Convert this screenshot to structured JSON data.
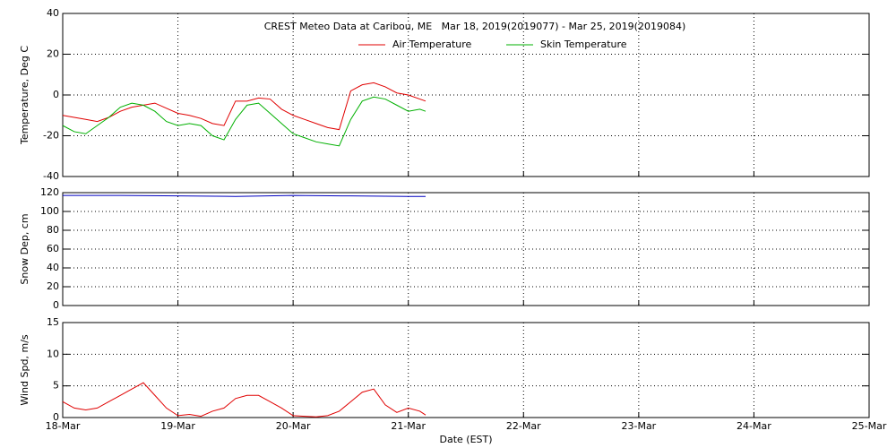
{
  "chart_data": [
    {
      "type": "line",
      "title": "CREST Meteo Data at Caribou, ME   Mar 18, 2019(2019077) - Mar 25, 2019(2019084)",
      "ylabel": "Temperature, Deg C",
      "x": [
        0,
        0.1,
        0.2,
        0.3,
        0.4,
        0.5,
        0.6,
        0.7,
        0.8,
        0.9,
        1.0,
        1.1,
        1.2,
        1.3,
        1.4,
        1.5,
        1.6,
        1.7,
        1.8,
        1.9,
        2.0,
        2.1,
        2.2,
        2.3,
        2.4,
        2.5,
        2.6,
        2.7,
        2.8,
        2.9,
        3.0,
        3.1,
        3.15
      ],
      "series": [
        {
          "name": "Air Temperature",
          "color": "#e00000",
          "values": [
            -10,
            -11,
            -12,
            -13,
            -11,
            -8,
            -6,
            -5,
            -4,
            -6.5,
            -9,
            -10,
            -11.5,
            -14,
            -15,
            -3,
            -3,
            -1.5,
            -2,
            -7,
            -10,
            -12,
            -14,
            -16,
            -17,
            2,
            5,
            6,
            4,
            1,
            0,
            -2,
            -3
          ]
        },
        {
          "name": "Skin Temperature",
          "color": "#00b000",
          "values": [
            -15,
            -18,
            -19,
            -15,
            -11,
            -6,
            -4,
            -5,
            -8,
            -13,
            -15,
            -14,
            -15,
            -20,
            -22,
            -12,
            -5,
            -4,
            -9,
            -14,
            -19,
            -21,
            -23,
            -24,
            -25,
            -12,
            -3,
            -1,
            -2,
            -5,
            -8,
            -7,
            -8
          ]
        }
      ],
      "xlim": [
        0,
        7
      ],
      "xticks": [
        0,
        1,
        2,
        3,
        4,
        5,
        6,
        7
      ],
      "ylim": [
        -40,
        40
      ],
      "yticks": [
        -40,
        -20,
        0,
        20,
        40
      ],
      "grid": true
    },
    {
      "type": "line",
      "ylabel": "Snow Dep, cm",
      "x": [
        0,
        0.5,
        1.0,
        1.5,
        2.0,
        2.5,
        3.0,
        3.15
      ],
      "series": [
        {
          "color": "#0000c0",
          "values": [
            117,
            117,
            116.5,
            116,
            117,
            116.5,
            116,
            116
          ]
        }
      ],
      "xlim": [
        0,
        7
      ],
      "xticks": [
        0,
        1,
        2,
        3,
        4,
        5,
        6,
        7
      ],
      "ylim": [
        0,
        120
      ],
      "yticks": [
        0,
        20,
        40,
        60,
        80,
        100,
        120
      ],
      "grid": true
    },
    {
      "type": "line",
      "ylabel": "Wind Spd, m/s",
      "xlabel": "Date (EST)",
      "x": [
        0,
        0.1,
        0.2,
        0.3,
        0.4,
        0.5,
        0.6,
        0.7,
        0.8,
        0.9,
        1.0,
        1.1,
        1.2,
        1.3,
        1.4,
        1.5,
        1.6,
        1.7,
        1.8,
        1.9,
        2.0,
        2.1,
        2.2,
        2.3,
        2.4,
        2.5,
        2.6,
        2.7,
        2.8,
        2.9,
        3.0,
        3.1,
        3.15
      ],
      "series": [
        {
          "color": "#e00000",
          "values": [
            2.5,
            1.5,
            1.2,
            1.5,
            2.5,
            3.5,
            4.5,
            5.5,
            3.5,
            1.5,
            0.3,
            0.5,
            0.2,
            1,
            1.5,
            3,
            3.5,
            3.5,
            2.5,
            1.5,
            0.3,
            0.2,
            0.1,
            0.3,
            1,
            2.5,
            4,
            4.5,
            2,
            0.8,
            1.5,
            1,
            0.4
          ]
        }
      ],
      "xlim": [
        0,
        7
      ],
      "xticks": [
        {
          "value": 0,
          "label": "18-Mar"
        },
        {
          "value": 1,
          "label": "19-Mar"
        },
        {
          "value": 2,
          "label": "20-Mar"
        },
        {
          "value": 3,
          "label": "21-Mar"
        },
        {
          "value": 4,
          "label": "22-Mar"
        },
        {
          "value": 5,
          "label": "23-Mar"
        },
        {
          "value": 6,
          "label": "24-Mar"
        },
        {
          "value": 7,
          "label": "25-Mar"
        }
      ],
      "ylim": [
        0,
        15
      ],
      "yticks": [
        0,
        5,
        10,
        15
      ],
      "grid": true
    }
  ]
}
